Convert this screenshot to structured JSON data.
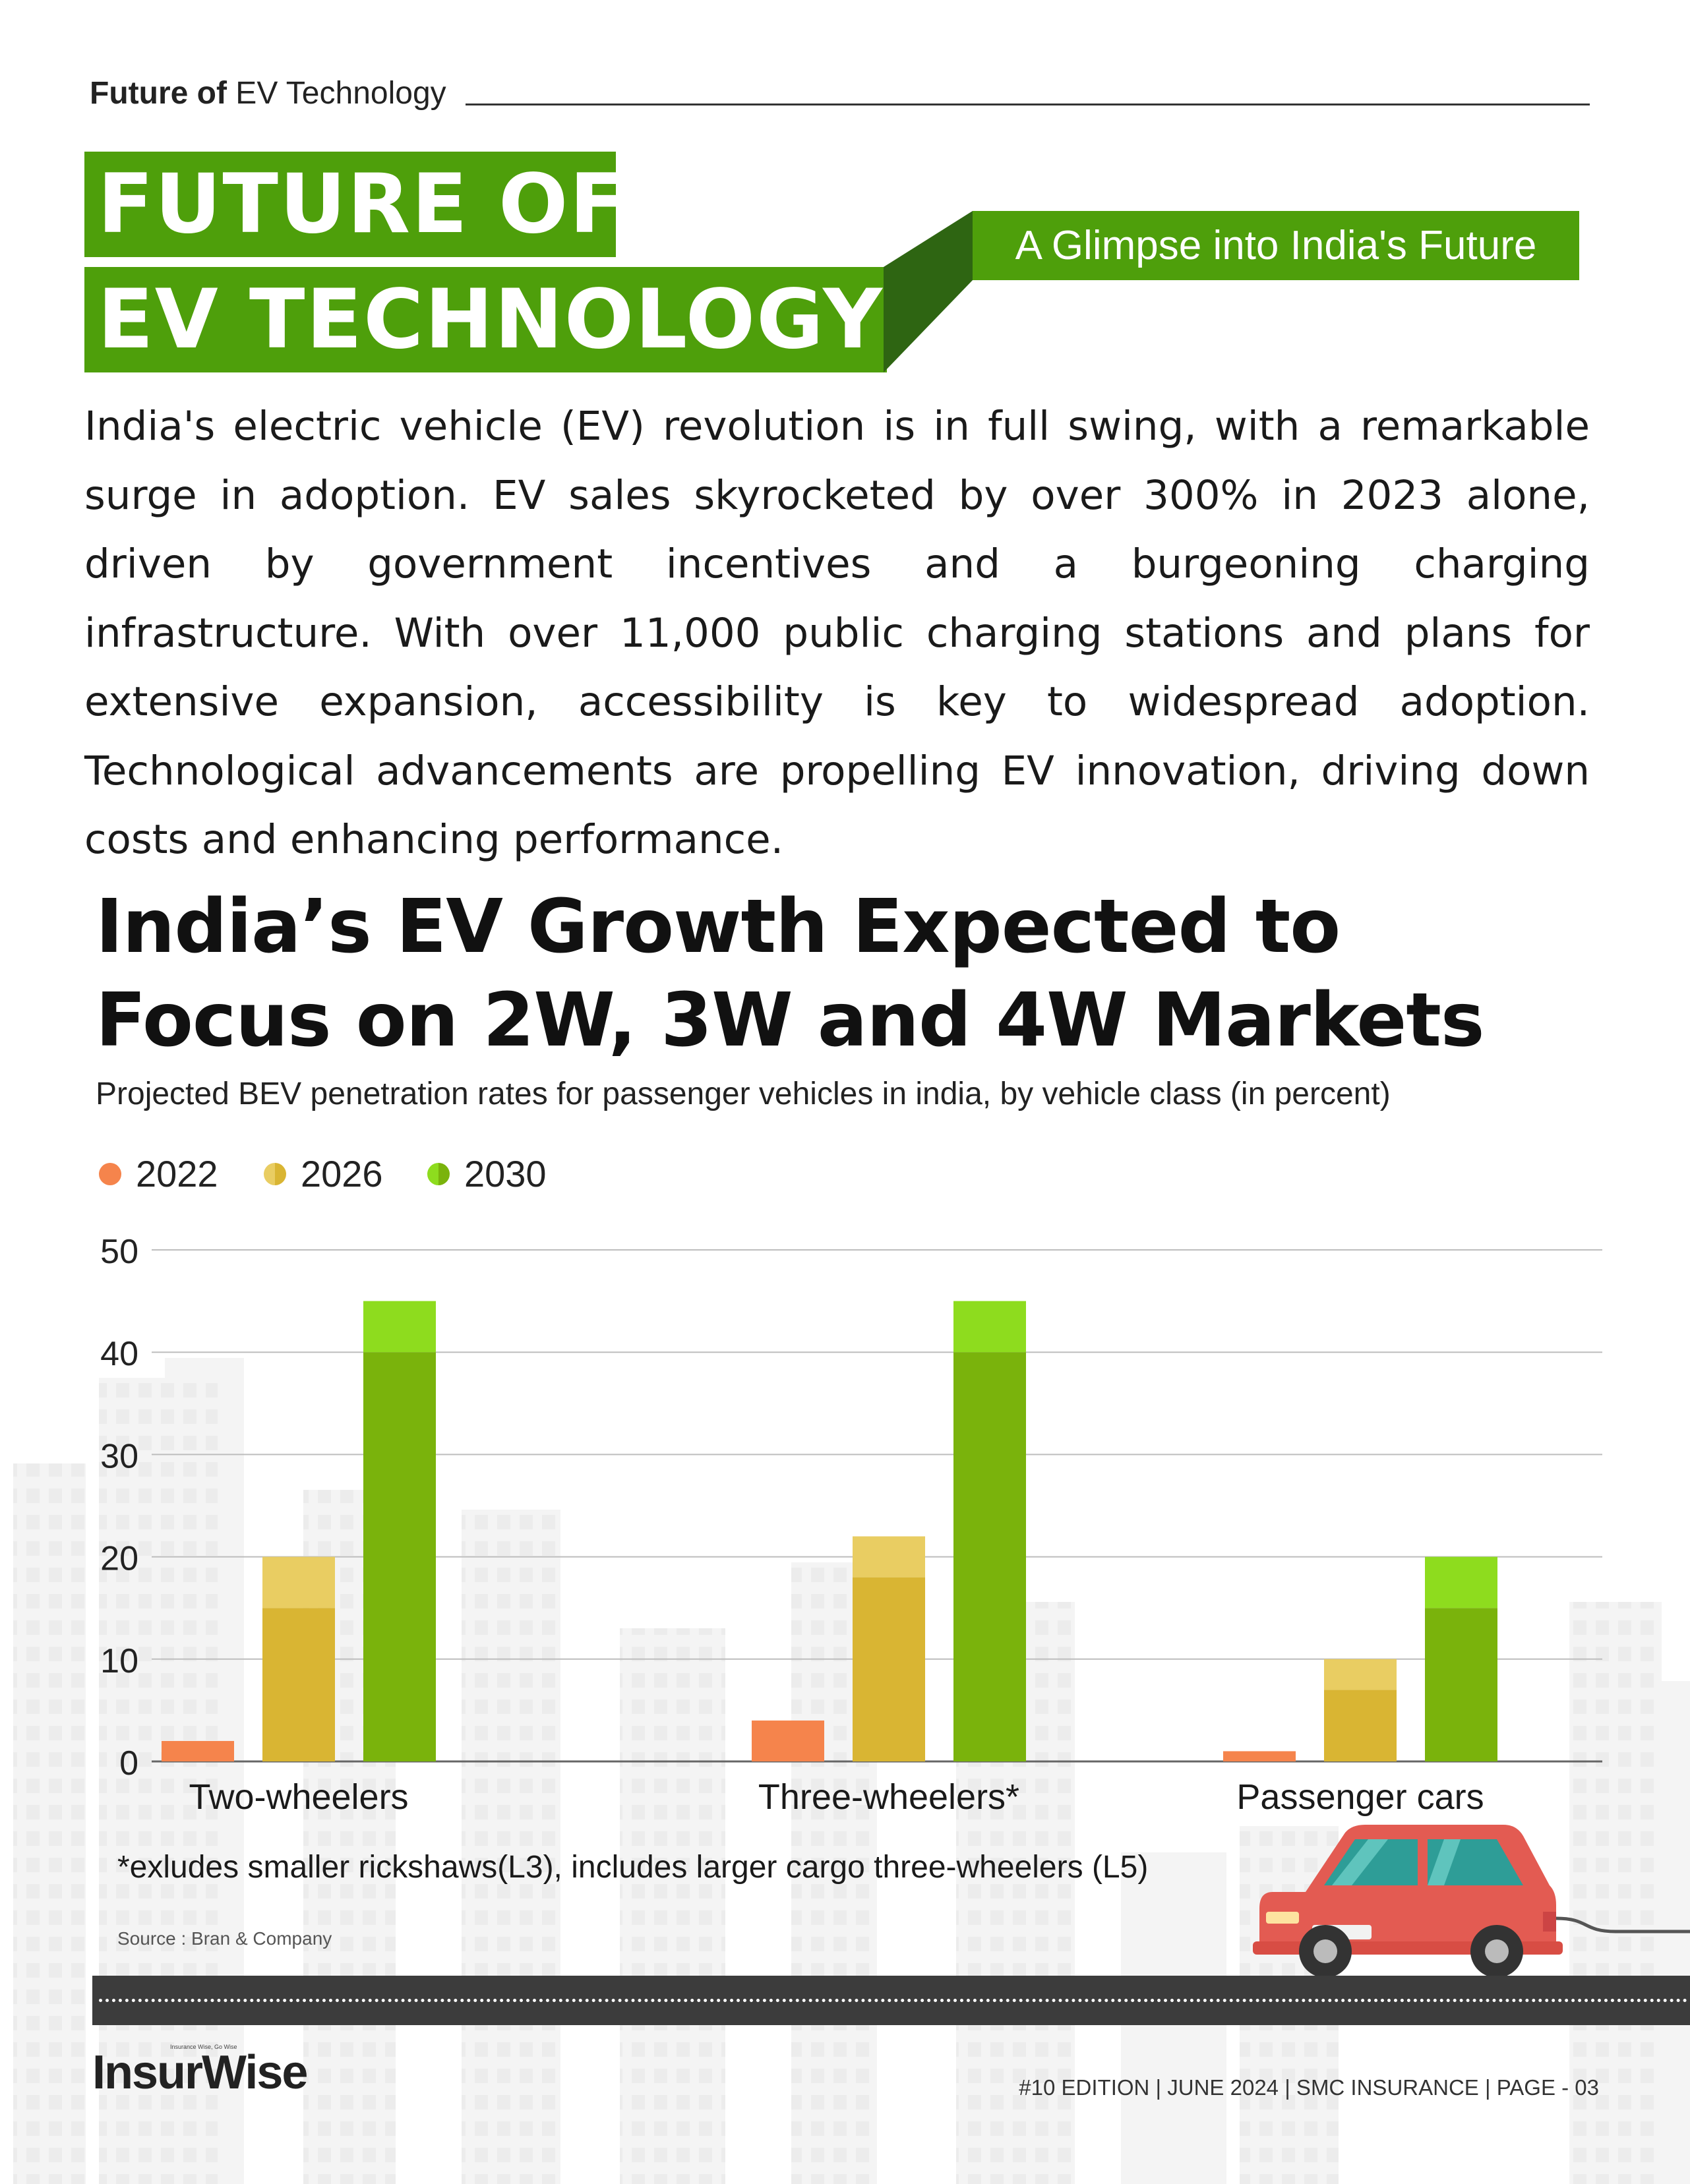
{
  "header": {
    "section_label_bold": "Future of",
    "section_label_rest": " EV Technology",
    "title_line_1": "FUTURE OF",
    "title_line_2": "EV TECHNOLOGY",
    "subtitle": "A Glimpse into India's Future"
  },
  "intro_text": "India's electric vehicle (EV) revolution is in full swing, with a remarkable surge in adoption. EV sales skyrocketed by over 300% in 2023 alone, driven by government incentives and a burgeoning charging infrastructure. With over 11,000 public charging stations and plans for extensive expansion, accessibility is key to widespread adoption. Technological advancements are propelling EV innovation, driving down costs and enhancing performance.",
  "chart_data": {
    "type": "bar",
    "title": "India’s EV Growth Expected to Focus on 2W, 3W and 4W Markets",
    "subtitle": "Projected BEV penetration rates for passenger vehicles in india, by vehicle class (in percent)",
    "categories": [
      "Two-wheelers",
      "Three-wheelers*",
      "Passenger cars"
    ],
    "series": [
      {
        "name": "2022",
        "color": "#f5844c",
        "values": [
          2,
          4,
          1
        ]
      },
      {
        "name": "2026",
        "color": "#d9b533",
        "range_color": "#e9cd62",
        "low": [
          15,
          18,
          7
        ],
        "high": [
          20,
          22,
          10
        ]
      },
      {
        "name": "2030",
        "color": "#7ab30c",
        "range_color": "#8edc1e",
        "low": [
          40,
          40,
          15
        ],
        "high": [
          45,
          45,
          20
        ]
      }
    ],
    "ylim": [
      0,
      50
    ],
    "yticks": [
      "0",
      "10",
      "20",
      "30",
      "40",
      "50"
    ],
    "grid": true,
    "legend_position": "top-left",
    "footnote": "*exludes smaller rickshaws(L3), includes larger cargo three-wheelers (L5)",
    "source": "Source : Bran & Company"
  },
  "footer": {
    "brand": "InsurWise",
    "tagline": "Insurance Wise, Go Wise",
    "edition_text": "#10 EDITION | JUNE 2024 |  SMC INSURANCE | PAGE - 03"
  },
  "colors": {
    "accent_green": "#4e9f0b",
    "accent_green_dark": "#2e6512",
    "road": "#3c3c3c",
    "car_body": "#e35b52"
  },
  "icons": [
    "electric-car-icon",
    "city-skyline-background"
  ]
}
